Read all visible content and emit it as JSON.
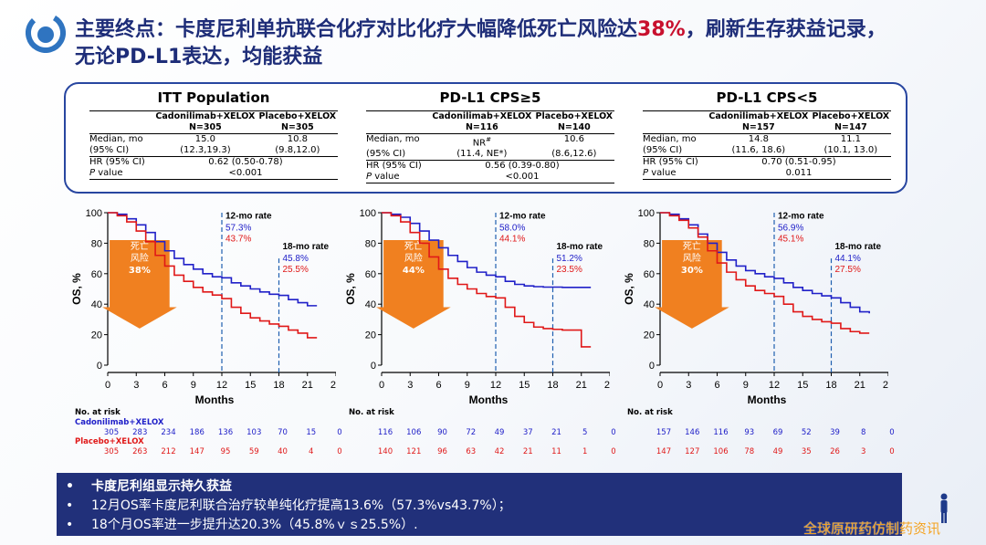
{
  "header": {
    "title_part1": "主要终点：卡度尼利单抗联合化疗对比化疗大幅降低死亡风险达",
    "title_highlight": "38%",
    "title_part2": "，刷新生存获益记录，",
    "title_line2": "无论PD-L1表达，均能获益"
  },
  "tables": [
    {
      "title": "ITT Population",
      "col1": "Cadonilimab+XELOX",
      "col1_n": "N=305",
      "col2": "Placebo+XELOX",
      "col2_n": "N=305",
      "median_label": "Median, mo",
      "ci_label": "(95% CI)",
      "median1": "15.0",
      "ci1": "(12.3,19.3)",
      "median2": "10.8",
      "ci2": "(9.8,12.0)",
      "hr_label": "HR (95% CI)",
      "hr": "0.62 (0.50-0.78)",
      "p_label_italic": "P",
      "p_label_rest": " value",
      "p": "<0.001"
    },
    {
      "title": "PD-L1 CPS≥5",
      "col1": "Cadonilimab+XELOX",
      "col1_n": "N=116",
      "col2": "Placebo+XELOX",
      "col2_n": "N=140",
      "median_label": "Median, mo",
      "ci_label": "(95% CI)",
      "median1": "NR",
      "median1_sup": "#",
      "ci1": "(11.4, NE*)",
      "median2": "10.6",
      "ci2": "(8.6,12.6)",
      "hr_label": "HR (95% CI)",
      "hr": "0.56 (0.39-0.80)",
      "p_label_italic": "P",
      "p_label_rest": " value",
      "p": "<0.001"
    },
    {
      "title": "PD-L1 CPS<5",
      "col1": "Cadonilimab+XELOX",
      "col1_n": "N=157",
      "col2": "Placebo+XELOX",
      "col2_n": "N=147",
      "median_label": "Median, mo",
      "ci_label": "(95% CI)",
      "median1": "14.8",
      "ci1": "(11.6, 18.6)",
      "median2": "11.1",
      "ci2": "(10.1, 13.0)",
      "hr_label": "HR (95% CI)",
      "hr": "0.70 (0.51-0.95)",
      "p_label_italic": "P",
      "p_label_rest": " value",
      "p": "0.011"
    }
  ],
  "chart_data": [
    {
      "type": "line",
      "xlabel": "Months",
      "ylabel": "OS, %",
      "xlim": [
        0,
        24
      ],
      "ylim": [
        0,
        100
      ],
      "xticks": [
        "0",
        "3",
        "6",
        "9",
        "12",
        "15",
        "18",
        "21",
        "24"
      ],
      "yticks": [
        "0",
        "20",
        "40",
        "60",
        "80",
        "100"
      ],
      "series": [
        {
          "name": "Cadonilimab+XELOX",
          "color": "#2020c8",
          "x": [
            0,
            1,
            2,
            3,
            4,
            5,
            6,
            7,
            8,
            9,
            10,
            11,
            12,
            13,
            14,
            15,
            16,
            17,
            18,
            19,
            20,
            21,
            22
          ],
          "y": [
            100,
            99,
            96,
            92,
            87,
            81,
            75,
            70,
            66,
            63,
            60,
            58,
            57.3,
            54,
            52,
            50,
            48,
            46.5,
            45.8,
            43,
            41,
            39,
            39
          ]
        },
        {
          "name": "Placebo+XELOX",
          "color": "#e01818",
          "x": [
            0,
            1,
            2,
            3,
            4,
            5,
            6,
            7,
            8,
            9,
            10,
            11,
            12,
            13,
            14,
            15,
            16,
            17,
            18,
            19,
            20,
            21,
            22
          ],
          "y": [
            100,
            98,
            94,
            88,
            81,
            72,
            65,
            59,
            55,
            51,
            48,
            46,
            43.7,
            38,
            34,
            31,
            29,
            27,
            25.5,
            23,
            21,
            18,
            18
          ]
        }
      ],
      "arrow_text": [
        "死亡",
        "风险",
        "38%"
      ],
      "annotations": [
        {
          "x": 12,
          "title": "12-mo rate",
          "blue": "57.3%",
          "red": "43.7%"
        },
        {
          "x": 18,
          "title": "18-mo rate",
          "blue": "45.8%",
          "red": "25.5%"
        }
      ],
      "risk": {
        "title": "No. at risk",
        "blue_label": "Cadonilimab+XELOX",
        "red_label": "Placebo+XELOX",
        "blue": [
          "305",
          "283",
          "234",
          "186",
          "136",
          "103",
          "70",
          "15",
          "0"
        ],
        "red": [
          "305",
          "263",
          "212",
          "147",
          "95",
          "59",
          "40",
          "4",
          "0"
        ]
      }
    },
    {
      "type": "line",
      "xlabel": "Months",
      "ylabel": "OS, %",
      "xlim": [
        0,
        24
      ],
      "ylim": [
        0,
        100
      ],
      "xticks": [
        "0",
        "3",
        "6",
        "9",
        "12",
        "15",
        "18",
        "21",
        "24"
      ],
      "yticks": [
        "0",
        "20",
        "40",
        "60",
        "80",
        "100"
      ],
      "series": [
        {
          "name": "Cadonilimab+XELOX",
          "color": "#2020c8",
          "x": [
            0,
            1,
            2,
            3,
            4,
            5,
            6,
            7,
            8,
            9,
            10,
            11,
            12,
            13,
            14,
            15,
            16,
            17,
            18,
            19,
            20,
            21,
            22
          ],
          "y": [
            100,
            99,
            97,
            93,
            88,
            82,
            77,
            72,
            68,
            64,
            61,
            59,
            58,
            55,
            53,
            52,
            51.5,
            51.2,
            51.2,
            51,
            51,
            51,
            51
          ]
        },
        {
          "name": "Placebo+XELOX",
          "color": "#e01818",
          "x": [
            0,
            1,
            2,
            3,
            4,
            5,
            6,
            7,
            8,
            9,
            10,
            11,
            12,
            13,
            14,
            15,
            16,
            17,
            18,
            19,
            20,
            21,
            22
          ],
          "y": [
            100,
            98,
            94,
            87,
            80,
            71,
            63,
            57,
            53,
            50,
            47,
            45,
            44.1,
            38,
            32,
            28,
            25,
            24,
            23.5,
            23,
            23,
            12,
            12
          ]
        }
      ],
      "arrow_text": [
        "死亡",
        "风险",
        "44%"
      ],
      "annotations": [
        {
          "x": 12,
          "title": "12-mo rate",
          "blue": "58.0%",
          "red": "44.1%"
        },
        {
          "x": 18,
          "title": "18-mo rate",
          "blue": "51.2%",
          "red": "23.5%"
        }
      ],
      "risk": {
        "title": "No. at risk",
        "blue_label": "",
        "red_label": "",
        "blue": [
          "116",
          "106",
          "90",
          "72",
          "49",
          "37",
          "21",
          "5",
          "0"
        ],
        "red": [
          "140",
          "121",
          "96",
          "63",
          "42",
          "21",
          "11",
          "1",
          "0"
        ]
      }
    },
    {
      "type": "line",
      "xlabel": "Months",
      "ylabel": "OS, %",
      "xlim": [
        0,
        24
      ],
      "ylim": [
        0,
        100
      ],
      "xticks": [
        "0",
        "3",
        "6",
        "9",
        "12",
        "15",
        "18",
        "21",
        "24"
      ],
      "yticks": [
        "0",
        "20",
        "40",
        "60",
        "80",
        "100"
      ],
      "series": [
        {
          "name": "Cadonilimab+XELOX",
          "color": "#2020c8",
          "x": [
            0,
            1,
            2,
            3,
            4,
            5,
            6,
            7,
            8,
            9,
            10,
            11,
            12,
            13,
            14,
            15,
            16,
            17,
            18,
            19,
            20,
            21,
            22
          ],
          "y": [
            100,
            99,
            96,
            92,
            86,
            80,
            74,
            69,
            65,
            62,
            60,
            58,
            56.9,
            54,
            51,
            49,
            47,
            45.5,
            44.1,
            41,
            38,
            35,
            34
          ]
        },
        {
          "name": "Placebo+XELOX",
          "color": "#e01818",
          "x": [
            0,
            1,
            2,
            3,
            4,
            5,
            6,
            7,
            8,
            9,
            10,
            11,
            12,
            13,
            14,
            15,
            16,
            17,
            18,
            19,
            20,
            21,
            22
          ],
          "y": [
            100,
            98,
            95,
            90,
            84,
            75,
            67,
            61,
            56,
            52,
            49,
            47,
            45.1,
            40,
            35,
            32,
            30,
            28.5,
            27.5,
            24,
            22,
            21,
            21
          ]
        }
      ],
      "arrow_text": [
        "死亡",
        "风险",
        "30%"
      ],
      "annotations": [
        {
          "x": 12,
          "title": "12-mo rate",
          "blue": "56.9%",
          "red": "45.1%"
        },
        {
          "x": 18,
          "title": "18-mo rate",
          "blue": "44.1%",
          "red": "27.5%"
        }
      ],
      "risk": {
        "title": "No. at risk",
        "blue_label": "",
        "red_label": "",
        "blue": [
          "157",
          "146",
          "116",
          "93",
          "69",
          "52",
          "39",
          "8",
          "0"
        ],
        "red": [
          "147",
          "127",
          "106",
          "78",
          "49",
          "35",
          "26",
          "3",
          "0"
        ]
      }
    }
  ],
  "bottom": {
    "bullet": "•",
    "line1": "卡度尼利组显示持久获益",
    "line2": "12月OS率卡度尼利联合治疗较单纯化疗提高13.6%（57.3%vs43.7%）；",
    "line3": "18个月OS率进一步提升达20.3%（45.8%ｖｓ25.5%）."
  },
  "watermark": "全球原研药仿制药资讯",
  "colors": {
    "title": "#1e2d78",
    "highlight": "#c8102e",
    "blue": "#2020c8",
    "red": "#e01818",
    "arrow": "#f08020",
    "panel": "#21307a"
  }
}
